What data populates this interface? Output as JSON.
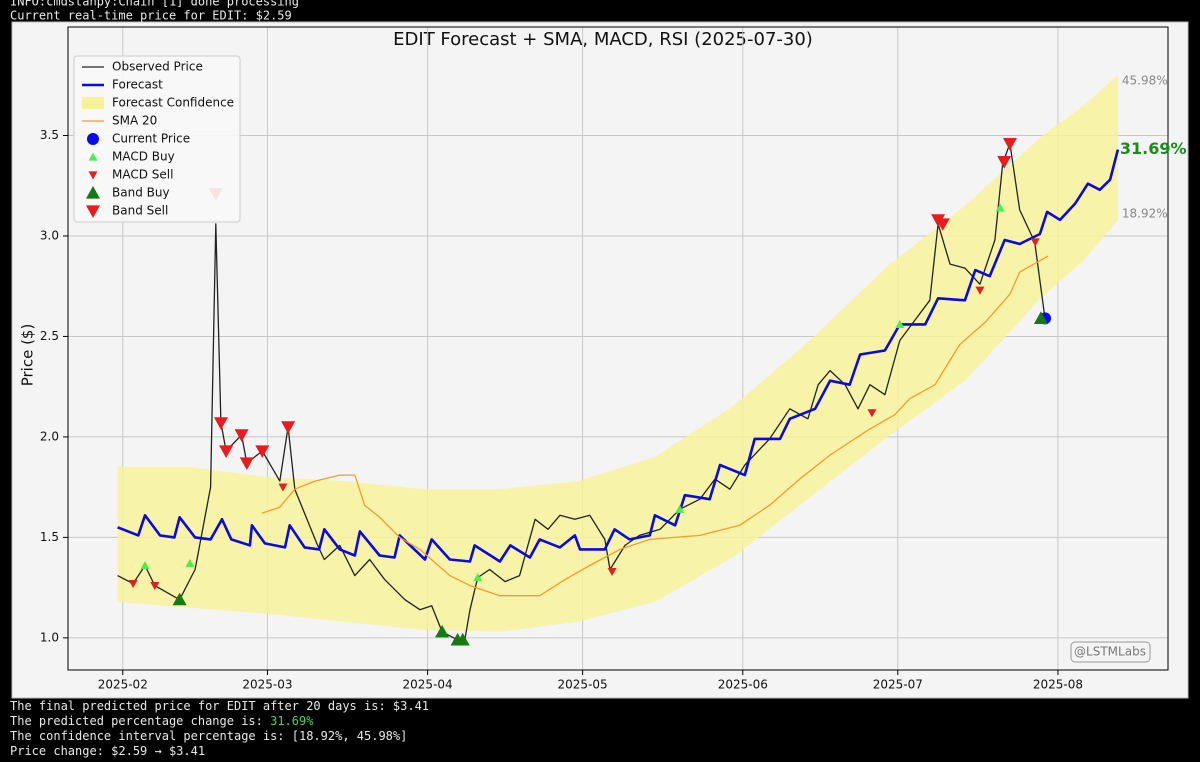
{
  "terminal": {
    "top": [
      "INFO:cmdstanpy:Chain [1] done processing",
      "Current real-time price for EDIT: $2.59"
    ],
    "bottom": [
      [
        {
          "text": "The final predicted price for EDIT after 20 days is: $3.41"
        }
      ],
      [
        {
          "text": "The predicted percentage change is: "
        },
        {
          "text": "31.69%",
          "color": "#4cd94c"
        }
      ],
      [
        {
          "text": "The confidence interval percentage is: [18.92%, 45.98%]"
        }
      ],
      [
        {
          "text": "Price change: $2.59 → $3.41"
        }
      ]
    ]
  },
  "chart_data": {
    "type": "line",
    "title": "EDIT Forecast + SMA, MACD, RSI (2025-07-30)",
    "ylabel": "Price ($)",
    "xlim": [
      21.4,
      234.3
    ],
    "ylim": [
      0.84,
      4.04
    ],
    "xticks": [
      {
        "value": 32,
        "label": "2025-02"
      },
      {
        "value": 60,
        "label": "2025-03"
      },
      {
        "value": 91,
        "label": "2025-04"
      },
      {
        "value": 121,
        "label": "2025-05"
      },
      {
        "value": 152,
        "label": "2025-06"
      },
      {
        "value": 182,
        "label": "2025-07"
      },
      {
        "value": 213,
        "label": "2025-08"
      }
    ],
    "yticks": [
      {
        "value": 1.0,
        "label": "1.0"
      },
      {
        "value": 1.5,
        "label": "1.5"
      },
      {
        "value": 2.0,
        "label": "2.0"
      },
      {
        "value": 2.5,
        "label": "2.5"
      },
      {
        "value": 3.0,
        "label": "3.0"
      },
      {
        "value": 3.5,
        "label": "3.5"
      }
    ],
    "grid": true,
    "legend": "upper left",
    "upper_label": "45.98%",
    "forecast_label": "31.69%",
    "forecast_label_color": "#1a8a1a",
    "lower_label": "18.92%",
    "watermark": "@LSTMLabs",
    "series": [
      {
        "name": "Observed Price",
        "color": "#222222",
        "width": 1.3,
        "x": [
          31,
          34,
          36.3,
          38.2,
          43,
          46,
          49,
          50,
          51,
          52,
          55,
          56,
          59,
          62.4,
          64,
          65.3,
          69.7,
          71,
          74,
          76.9,
          79.8,
          82.7,
          86.6,
          89.5,
          91.8,
          93.8,
          96.8,
          98.2,
          99.2,
          100.7,
          103,
          106,
          108.8,
          111.8,
          114.3,
          116.6,
          119.5,
          122.4,
          125.3,
          126.3,
          129.2,
          132,
          136,
          139.8,
          143.7,
          146.6,
          149.5,
          152.4,
          157.2,
          161.1,
          164.6,
          166.6,
          168.9,
          171.8,
          174.3,
          176.6,
          179.5,
          182.4,
          185.3,
          188.2,
          189.8,
          192.1,
          195,
          197.9,
          200.8,
          202.3,
          203.7,
          205.6,
          208.5,
          210.5
        ],
        "values": [
          1.31,
          1.27,
          1.36,
          1.26,
          1.19,
          1.34,
          1.75,
          3.06,
          2.07,
          1.93,
          2.01,
          1.87,
          1.93,
          1.78,
          2.05,
          1.74,
          1.46,
          1.39,
          1.46,
          1.31,
          1.39,
          1.29,
          1.19,
          1.14,
          1.16,
          1.03,
          0.99,
          0.99,
          1.14,
          1.3,
          1.34,
          1.28,
          1.31,
          1.59,
          1.54,
          1.61,
          1.59,
          1.61,
          1.49,
          1.34,
          1.46,
          1.51,
          1.54,
          1.64,
          1.69,
          1.79,
          1.74,
          1.86,
          1.99,
          2.14,
          2.09,
          2.26,
          2.33,
          2.26,
          2.14,
          2.26,
          2.21,
          2.48,
          2.58,
          2.68,
          3.06,
          2.86,
          2.84,
          2.76,
          2.98,
          3.36,
          3.46,
          3.13,
          2.97,
          2.59
        ]
      },
      {
        "name": "Forecast",
        "color": "#0a0adc",
        "width": 2.6,
        "x": [
          31,
          35,
          36.3,
          39.2,
          42,
          43,
          46,
          49,
          51.2,
          53,
          56.6,
          57,
          59.5,
          63.4,
          64.3,
          67.2,
          70,
          71,
          74,
          76.9,
          77.9,
          81.7,
          84.6,
          85.6,
          90.5,
          91.8,
          95.3,
          99.2,
          100.1,
          105,
          107,
          110.8,
          112.7,
          116.6,
          119.5,
          120.5,
          125.3,
          127.2,
          130.1,
          134,
          135,
          138.9,
          140.8,
          145.6,
          147.6,
          152.4,
          154.3,
          159.2,
          161.1,
          166,
          168.9,
          172.7,
          174.7,
          179.5,
          182.4,
          187.3,
          189.8,
          195,
          197,
          199.8,
          202.7,
          205.6,
          209.5,
          210.9,
          213.4,
          216.3,
          218.8,
          221.1,
          223.1,
          224.6
        ],
        "values": [
          1.55,
          1.51,
          1.61,
          1.51,
          1.5,
          1.6,
          1.5,
          1.49,
          1.59,
          1.49,
          1.46,
          1.56,
          1.47,
          1.45,
          1.56,
          1.45,
          1.44,
          1.54,
          1.44,
          1.41,
          1.53,
          1.41,
          1.4,
          1.51,
          1.39,
          1.49,
          1.39,
          1.38,
          1.46,
          1.38,
          1.46,
          1.4,
          1.49,
          1.45,
          1.51,
          1.44,
          1.44,
          1.54,
          1.49,
          1.51,
          1.61,
          1.56,
          1.71,
          1.69,
          1.86,
          1.81,
          1.99,
          1.99,
          2.09,
          2.14,
          2.28,
          2.26,
          2.41,
          2.43,
          2.56,
          2.56,
          2.69,
          2.68,
          2.83,
          2.8,
          2.98,
          2.96,
          3.01,
          3.12,
          3.08,
          3.16,
          3.26,
          3.23,
          3.28,
          3.43
        ]
      },
      {
        "name": "Forecast Confidence",
        "color": "#f7f29a",
        "band": true,
        "x": [
          31,
          45,
          60,
          75,
          90,
          105,
          120,
          135,
          150,
          165,
          180,
          195,
          210,
          218,
          224.6
        ],
        "lower": [
          1.18,
          1.15,
          1.12,
          1.08,
          1.04,
          1.03,
          1.08,
          1.18,
          1.4,
          1.7,
          2.0,
          2.28,
          2.7,
          2.88,
          3.08
        ],
        "upper": [
          1.85,
          1.85,
          1.8,
          1.78,
          1.74,
          1.74,
          1.78,
          1.9,
          2.15,
          2.48,
          2.85,
          3.15,
          3.5,
          3.65,
          3.8
        ]
      },
      {
        "name": "SMA 20",
        "color": "#f39c2c",
        "width": 1.3,
        "x": [
          58.9,
          62.4,
          65.3,
          69.2,
          74,
          76.9,
          78.8,
          81.7,
          85.6,
          89.5,
          95.3,
          99.2,
          105,
          112.7,
          117.6,
          122.4,
          128.2,
          134,
          143.7,
          151.4,
          157.2,
          163,
          168.9,
          176.6,
          181.4,
          184.3,
          189.2,
          194,
          198.9,
          203.7,
          205.6,
          211.1
        ],
        "values": [
          1.62,
          1.65,
          1.74,
          1.78,
          1.81,
          1.81,
          1.66,
          1.6,
          1.5,
          1.44,
          1.31,
          1.26,
          1.21,
          1.21,
          1.29,
          1.36,
          1.44,
          1.49,
          1.51,
          1.56,
          1.66,
          1.79,
          1.91,
          2.04,
          2.11,
          2.19,
          2.26,
          2.46,
          2.57,
          2.71,
          2.82,
          2.9
        ]
      },
      {
        "name": "Current Price",
        "color": "#0a0aee",
        "marker": "circle",
        "size": 6,
        "x": [
          210.5
        ],
        "values": [
          2.59
        ]
      },
      {
        "name": "MACD Buy",
        "color": "#4cee4c",
        "marker": "triangle-up",
        "size": 4.5,
        "x": [
          36.3,
          45,
          100.7,
          139.8,
          182.4,
          201.8
        ],
        "values": [
          1.36,
          1.37,
          1.3,
          1.64,
          2.56,
          3.14
        ]
      },
      {
        "name": "MACD Sell",
        "color": "#e22020",
        "marker": "triangle-down",
        "size": 4.5,
        "x": [
          34,
          38.2,
          63,
          126.7,
          177,
          197.9,
          208.6
        ],
        "values": [
          1.27,
          1.26,
          1.75,
          1.33,
          2.12,
          2.73,
          2.97
        ]
      },
      {
        "name": "Band Buy",
        "color": "#157a15",
        "marker": "triangle-up",
        "size": 7,
        "x": [
          43,
          93.8,
          96.8,
          97.8,
          209.7
        ],
        "values": [
          1.19,
          1.03,
          0.99,
          0.99,
          2.59
        ]
      },
      {
        "name": "Band Sell",
        "color": "#e81c1c",
        "marker": "triangle-down",
        "size": 7,
        "x": [
          50,
          51,
          52,
          55,
          56,
          59,
          64,
          189.8,
          190.7,
          202.6,
          203.7
        ],
        "values": [
          3.21,
          2.07,
          1.93,
          2.01,
          1.87,
          1.93,
          2.05,
          3.08,
          3.06,
          3.37,
          3.46
        ]
      }
    ]
  }
}
